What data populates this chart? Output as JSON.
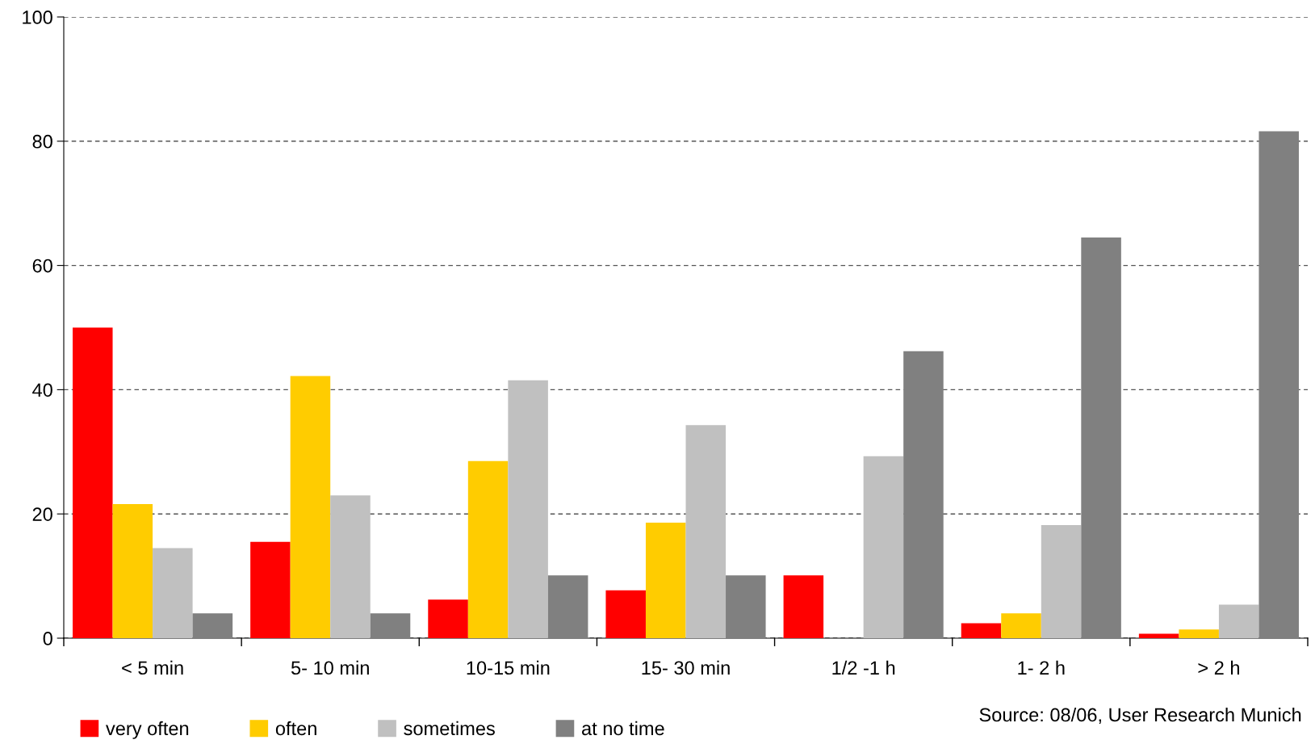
{
  "chart_data": {
    "type": "bar",
    "categories": [
      "< 5 min",
      "5- 10 min",
      "10-15 min",
      "15- 30 min",
      "1/2 -1 h",
      "1- 2 h",
      "> 2 h"
    ],
    "series": [
      {
        "name": "very often",
        "color": "#ff0000",
        "values": [
          50.0,
          15.5,
          6.2,
          7.7,
          10.1,
          2.4,
          0.7
        ]
      },
      {
        "name": "often",
        "color": "#ffcc00",
        "values": [
          21.6,
          42.2,
          28.5,
          18.6,
          0,
          4.0,
          1.4
        ]
      },
      {
        "name": "sometimes",
        "color": "#c0c0c0",
        "values": [
          14.5,
          23.0,
          41.5,
          34.3,
          29.3,
          18.2,
          5.4
        ]
      },
      {
        "name": "at no time",
        "color": "#808080",
        "values": [
          4.0,
          4.0,
          10.1,
          10.1,
          46.2,
          64.5,
          81.6
        ]
      }
    ],
    "ylim": [
      0,
      100
    ],
    "yticks": [
      0,
      20,
      40,
      60,
      80,
      100
    ],
    "grid": "y",
    "legend": "bottom left",
    "annotations": [
      "Source: 08/06, User Research Munich"
    ]
  }
}
